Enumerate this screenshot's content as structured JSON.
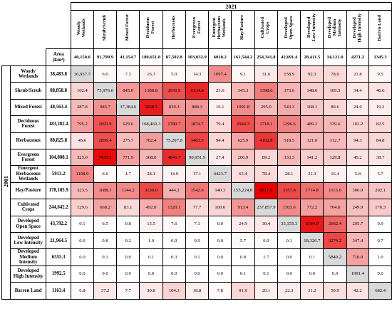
{
  "year_2021": "2021",
  "year_2001": "2001",
  "area_label": "Area",
  "area_unit": "(km²)",
  "classes": [
    "Woody\nWetlands",
    "Shrub/Scrub",
    "Mixed Forest",
    "Deciduous\nForest",
    "Herbaceous",
    "Evergreen\nForest",
    "Emergent\nHerbaceous\nWetlands",
    "Hay/Pasture",
    "Cultivated\nCrops",
    "Developed\nOpen Space",
    "Developed\nLow Intensity",
    "Developed\nMedium\nIntensity",
    "Developed\nHigh Intensity",
    "Barren Land"
  ],
  "areas_2021": [
    "40,150.6",
    "91,799.9",
    "41,154.7",
    "180,651.8",
    "87,502.8",
    "103,032.9",
    "6010.2",
    "161,544.2",
    "254,341.8",
    "42,691.4",
    "28,411.5",
    "14,121.0",
    "4271.2",
    "1345.3"
  ],
  "areas_2001": [
    "38,483.8",
    "88,858.8",
    "48,563.4",
    "183,282.4",
    "88,825.8",
    "104,808.1",
    "5913.2",
    "178,183.9",
    "244,642.2",
    "43,792.2",
    "21,964.5",
    "6555.3",
    "1992.5",
    "1163.4"
  ],
  "matrix": [
    [
      "36,937.7",
      "6.6",
      "7.3",
      "16.3",
      "5.0",
      "14.3",
      "1097.4",
      "9.1",
      "31.6",
      "158.9",
      "92.3",
      "78.0",
      "21.8",
      "9.5"
    ],
    [
      "102.4",
      "75,976.6",
      "845.0",
      "1388.8",
      "2930.9",
      "5134.8",
      "23.6",
      "345.3",
      "1398.6",
      "373.6",
      "148.6",
      "109.5",
      "34.4",
      "46.6"
    ],
    [
      "287.8",
      "985.7",
      "37,384.6",
      "5938.5",
      "839.3",
      "889.3",
      "16.1",
      "1091.8",
      "295.0",
      "543.3",
      "168.1",
      "80.6",
      "24.0",
      "19.2"
    ],
    [
      "795.2",
      "2693.9",
      "629.6",
      "168,460.3",
      "1780.7",
      "1874.7",
      "79.4",
      "2940.3",
      "1718.1",
      "1296.6",
      "489.2",
      "339.6",
      "102.2",
      "82.5"
    ],
    [
      "45.6",
      "2896.4",
      "275.7",
      "782.4",
      "75,207.8",
      "3403.5",
      "94.4",
      "625.9",
      "4162.8",
      "518.5",
      "321.0",
      "312.7",
      "94.3",
      "84.8"
    ],
    [
      "325.0",
      "7433.2",
      "771.9",
      "368.0",
      "4846.7",
      "90,051.9",
      "27.4",
      "206.9",
      "89.2",
      "333.3",
      "141.2",
      "129.8",
      "45.2",
      "38.7"
    ],
    [
      "1198.9",
      "6.6",
      "4.7",
      "28.1",
      "14.9",
      "17.1",
      "4423.7",
      "63.4",
      "78.4",
      "28.1",
      "21.3",
      "16.4",
      "5.8",
      "5.7"
    ],
    [
      "323.5",
      "1088.1",
      "1144.2",
      "3130.0",
      "444.2",
      "1542.6",
      "140.3",
      "155,224.8",
      "8611.9",
      "3157.8",
      "1714.8",
      "1113.6",
      "306.0",
      "202.1"
    ],
    [
      "129.6",
      "668.2",
      "83.1",
      "492.0",
      "1320.1",
      "77.7",
      "100.0",
      "913.4",
      "237,857.9",
      "1103.6",
      "772.2",
      "704.0",
      "249.9",
      "170.3"
    ],
    [
      "0.1",
      "6.5",
      "0.8",
      "15.5",
      "7.6",
      "7.1",
      "0.0",
      "24.9",
      "30.4",
      "35,155.3",
      "6184.9",
      "2062.4",
      "295.7",
      "0.9"
    ],
    [
      "0.0",
      "0.8",
      "0.2",
      "1.0",
      "0.9",
      "0.9",
      "0.0",
      "5.7",
      "6.0",
      "0.1",
      "18,326.7",
      "3274.2",
      "347.4",
      "0.7"
    ],
    [
      "0.0",
      "0.1",
      "0.0",
      "0.1",
      "0.3",
      "0.1",
      "0.0",
      "0.8",
      "1.7",
      "0.0",
      "0.1",
      "5840.2",
      "710.9",
      "1.0"
    ],
    [
      "0.0",
      "0.0",
      "0.0",
      "0.0",
      "0.0",
      "0.0",
      "0.0",
      "0.1",
      "0.1",
      "0.0",
      "0.0",
      "0.0",
      "1991.4",
      "0.0"
    ],
    [
      "6.8",
      "37.2",
      "7.7",
      "30.8",
      "104.3",
      "18.8",
      "7.8",
      "91.9",
      "20.1",
      "22.3",
      "31.2",
      "59.9",
      "42.2",
      "682.4"
    ]
  ],
  "heat_colors": {
    "low": "#ffffff",
    "mid": "#f4a0a0",
    "high": "#e60000",
    "diagonal": "#d9d9d9"
  },
  "max_offdiag": 8611.9
}
